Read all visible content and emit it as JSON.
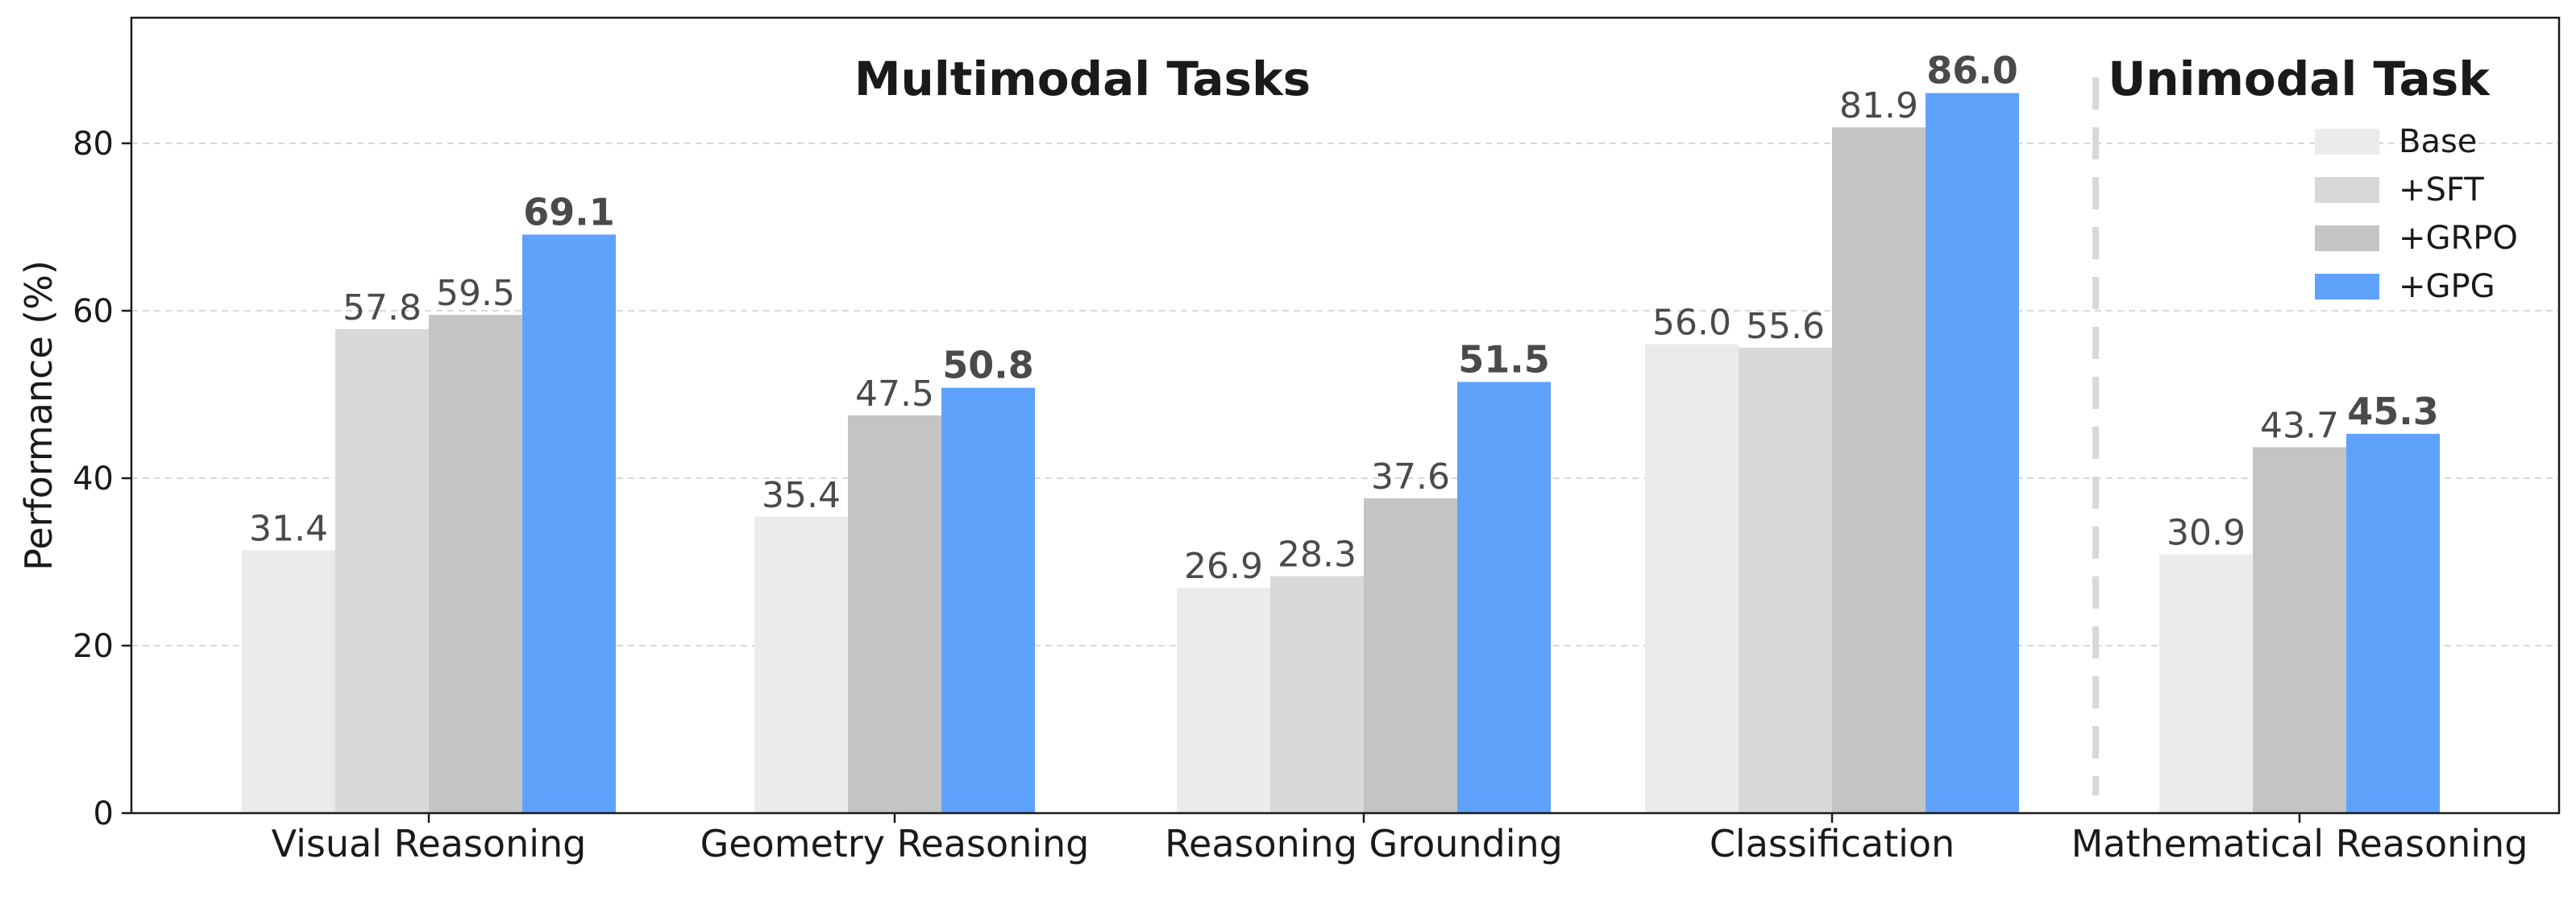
{
  "chart_data": {
    "type": "bar",
    "ylabel": "Performance (%)",
    "xlabel": "",
    "ylim": [
      0,
      95
    ],
    "yticks": [
      0,
      20,
      40,
      60,
      80
    ],
    "grid": true,
    "legend_position": "top-right",
    "group_titles": {
      "multimodal": "Multimodal Tasks",
      "unimodal": "Unimodal Task"
    },
    "series": [
      {
        "name": "Base",
        "color": "#ebebeb"
      },
      {
        "name": "+SFT",
        "color": "#d8d8d8"
      },
      {
        "name": "+GRPO",
        "color": "#c4c4c4"
      },
      {
        "name": "+GPG",
        "color": "#5fa2fc"
      }
    ],
    "categories": [
      {
        "label": "Visual Reasoning",
        "values": [
          {
            "series": "Base",
            "value": 31.4,
            "label": "31.4"
          },
          {
            "series": "+SFT",
            "value": 57.8,
            "label": "57.8"
          },
          {
            "series": "+GRPO",
            "value": 59.5,
            "label": "59.5"
          },
          {
            "series": "+GPG",
            "value": 69.1,
            "label": "69.1"
          }
        ]
      },
      {
        "label": "Geometry Reasoning",
        "values": [
          {
            "series": "Base",
            "value": 35.4,
            "label": "35.4"
          },
          {
            "series": "+GRPO",
            "value": 47.5,
            "label": "47.5"
          },
          {
            "series": "+GPG",
            "value": 50.8,
            "label": "50.8"
          }
        ]
      },
      {
        "label": "Reasoning Grounding",
        "values": [
          {
            "series": "Base",
            "value": 26.9,
            "label": "26.9"
          },
          {
            "series": "+SFT",
            "value": 28.3,
            "label": "28.3"
          },
          {
            "series": "+GRPO",
            "value": 37.6,
            "label": "37.6"
          },
          {
            "series": "+GPG",
            "value": 51.5,
            "label": "51.5"
          }
        ]
      },
      {
        "label": "Classification",
        "values": [
          {
            "series": "Base",
            "value": 56.0,
            "label": "56.0"
          },
          {
            "series": "+SFT",
            "value": 55.6,
            "label": "55.6"
          },
          {
            "series": "+GRPO",
            "value": 81.9,
            "label": "81.9"
          },
          {
            "series": "+GPG",
            "value": 86.0,
            "label": "86.0"
          }
        ]
      },
      {
        "label": "Mathematical Reasoning",
        "values": [
          {
            "series": "Base",
            "value": 30.9,
            "label": "30.9"
          },
          {
            "series": "+GRPO",
            "value": 43.7,
            "label": "43.7"
          },
          {
            "series": "+GPG",
            "value": 45.3,
            "label": "45.3"
          }
        ]
      }
    ]
  }
}
